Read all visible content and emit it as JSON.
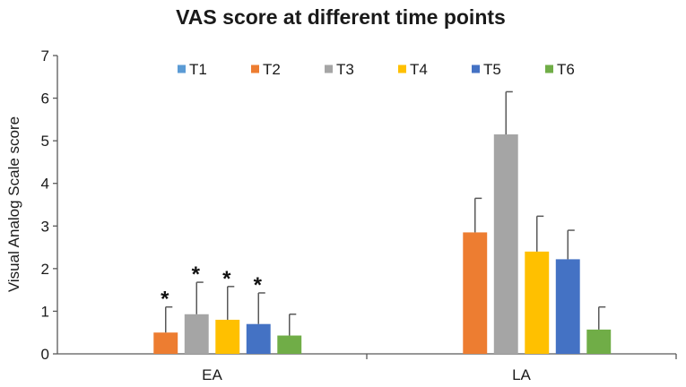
{
  "chart_data": {
    "type": "bar",
    "title": "VAS score at different time points",
    "xlabel": "",
    "ylabel": "Visual Analog Scale score",
    "ylim": [
      0,
      7
    ],
    "yticks": [
      "0",
      "1",
      "2",
      "3",
      "4",
      "5",
      "6",
      "7"
    ],
    "categories": [
      "EA",
      "LA"
    ],
    "legend_position": "top",
    "grid": false,
    "series": [
      {
        "name": "T1",
        "color": "#5B9BD5",
        "values": [
          0,
          0
        ],
        "errors": [
          0,
          0
        ],
        "significance": [
          "",
          ""
        ]
      },
      {
        "name": "T2",
        "color": "#ED7D31",
        "values": [
          0.5,
          2.85
        ],
        "errors": [
          0.6,
          0.8
        ],
        "significance": [
          "*",
          ""
        ]
      },
      {
        "name": "T3",
        "color": "#A5A5A5",
        "values": [
          0.93,
          5.15
        ],
        "errors": [
          0.75,
          1.0
        ],
        "significance": [
          "*",
          ""
        ]
      },
      {
        "name": "T4",
        "color": "#FFC000",
        "values": [
          0.8,
          2.4
        ],
        "errors": [
          0.78,
          0.83
        ],
        "significance": [
          "*",
          ""
        ]
      },
      {
        "name": "T5",
        "color": "#4472C4",
        "values": [
          0.7,
          2.22
        ],
        "errors": [
          0.73,
          0.68
        ],
        "significance": [
          "*",
          ""
        ]
      },
      {
        "name": "T6",
        "color": "#70AD47",
        "values": [
          0.43,
          0.57
        ],
        "errors": [
          0.5,
          0.53
        ],
        "significance": [
          "",
          ""
        ]
      }
    ]
  }
}
